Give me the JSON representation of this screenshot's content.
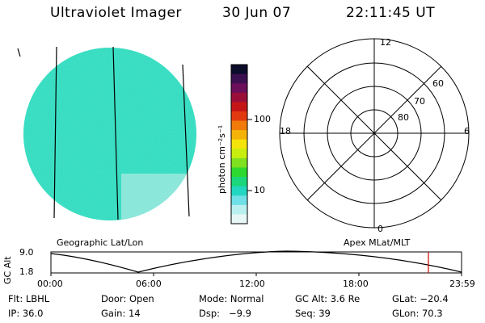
{
  "header": {
    "title": "Ultraviolet Imager",
    "date": "30 Jun 07",
    "time": "22:11:45 UT"
  },
  "colorbar": {
    "label": "photon cm⁻²s⁻¹",
    "ticks": [
      "100",
      "10"
    ],
    "colors": [
      "#0b0b2a",
      "#3b1050",
      "#6b0f5a",
      "#9a0f3a",
      "#c41616",
      "#e23a10",
      "#f07a0a",
      "#f5b30a",
      "#f4e40a",
      "#c8ee10",
      "#7fe020",
      "#2ed82e",
      "#1bd67a",
      "#22d6c0",
      "#6fe0e6",
      "#b9efef",
      "#e6f7f5"
    ]
  },
  "polar": {
    "mlt_labels": {
      "top": "12",
      "left": "18",
      "right": "6",
      "bottom": "0"
    },
    "lat_labels": [
      "60",
      "70",
      "80"
    ]
  },
  "subtitles": {
    "left": "Geographic Lat/Lon",
    "right": "Apex MLat/MLT"
  },
  "altplot": {
    "ylabel": "GC Alt",
    "yticks": [
      "9.0",
      "1.8"
    ],
    "xticks": [
      "00:00",
      "06:00",
      "12:00",
      "18:00",
      "23:59"
    ],
    "current_marker_color": "#cc0000"
  },
  "info": {
    "row1": [
      {
        "k": "Flt:",
        "v": "LBHL"
      },
      {
        "k": "Door:",
        "v": "Open"
      },
      {
        "k": "Mode:",
        "v": "Normal"
      },
      {
        "k": "GC Alt:",
        "v": "3.6 Re"
      },
      {
        "k": "GLat:",
        "v": "−20.4"
      }
    ],
    "row2": [
      {
        "k": "IP:",
        "v": "36.0"
      },
      {
        "k": "Gain:",
        "v": "14"
      },
      {
        "k": "Dsp:",
        "v": "  −9.9"
      },
      {
        "k": "Seq:",
        "v": "39"
      },
      {
        "k": "GLon:",
        "v": "70.3"
      }
    ]
  }
}
